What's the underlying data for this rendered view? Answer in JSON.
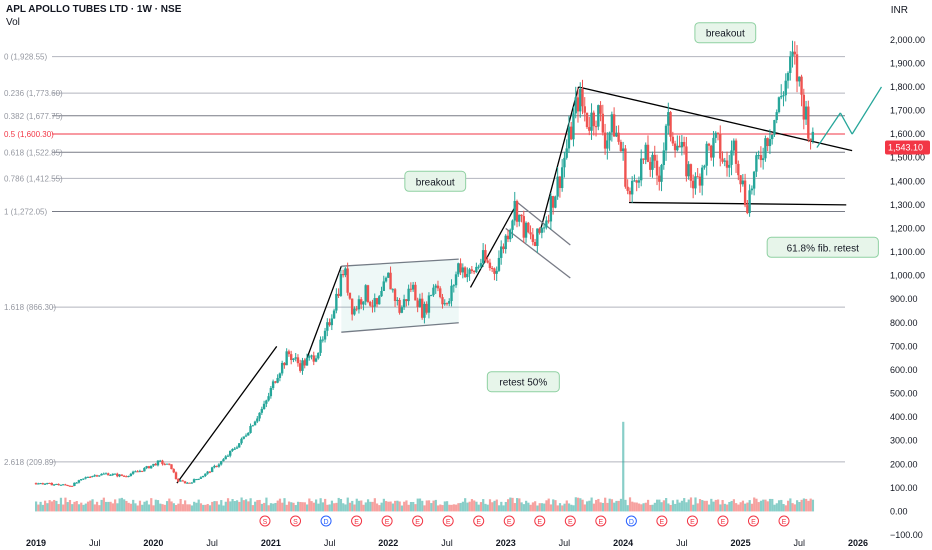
{
  "header": {
    "title": "APL APOLLO TUBES LTD · 1W · NSE",
    "volume_label": "Vol",
    "currency": "INR"
  },
  "chart_data": {
    "type": "candlestick",
    "ylim": [
      -100,
      2050
    ],
    "y_ticks": [
      -100,
      0,
      100,
      200,
      300,
      400,
      500,
      600,
      700,
      800,
      900,
      1000,
      1100,
      1200,
      1300,
      1400,
      1500,
      1600,
      1700,
      1800,
      1900,
      2000
    ],
    "y_tick_labels": [
      "−100.00",
      "0.00",
      "100.00",
      "200.00",
      "300.00",
      "400.00",
      "500.00",
      "600.00",
      "700.00",
      "800.00",
      "900.00",
      "1,000.00",
      "1,100.00",
      "1,200.00",
      "1,300.00",
      "1,400.00",
      "1,500.00",
      "1,600.00",
      "1,700.00",
      "1,800.00",
      "1,900.00",
      "2,000.00"
    ],
    "x_ticks": [
      "2019",
      "Jul",
      "2020",
      "Jul",
      "2021",
      "Jul",
      "2022",
      "Jul",
      "2023",
      "Jul",
      "2024",
      "Jul",
      "2025",
      "Jul",
      "2026"
    ],
    "x_tick_years": [
      2019.0,
      2019.5,
      2020.0,
      2020.5,
      2021.0,
      2021.5,
      2022.0,
      2022.5,
      2023.0,
      2023.5,
      2024.0,
      2024.5,
      2025.0,
      2025.5,
      2026.0
    ],
    "last_price": 1543.1,
    "last_price_label": "1,543.10",
    "fib_levels": [
      {
        "label": "0 (1,928.55)",
        "value": 1928.55,
        "color": "#b2b5be"
      },
      {
        "label": "0.236 (1,773.60)",
        "value": 1773.6,
        "color": "#b2b5be"
      },
      {
        "label": "0.382 (1,677.75)",
        "value": 1677.75,
        "color": "#787b86"
      },
      {
        "label": "0.5 (1,600.30)",
        "value": 1600.3,
        "color": "#f23645"
      },
      {
        "label": "0.618 (1,522.85)",
        "value": 1522.85,
        "color": "#787b86"
      },
      {
        "label": "0.786 (1,412.55)",
        "value": 1412.55,
        "color": "#b2b5be"
      },
      {
        "label": "1 (1,272.05)",
        "value": 1272.05,
        "color": "#787b86"
      },
      {
        "label": "1.618 (866.30)",
        "value": 866.3,
        "color": "#b2b5be"
      },
      {
        "label": "2.618 (209.89)",
        "value": 209.89,
        "color": "#b2b5be"
      }
    ],
    "price_path": [
      [
        2019.0,
        120
      ],
      [
        2019.15,
        115
      ],
      [
        2019.3,
        110
      ],
      [
        2019.45,
        150
      ],
      [
        2019.6,
        160
      ],
      [
        2019.75,
        150
      ],
      [
        2019.9,
        175
      ],
      [
        2020.05,
        210
      ],
      [
        2020.15,
        190
      ],
      [
        2020.2,
        130
      ],
      [
        2020.3,
        120
      ],
      [
        2020.45,
        160
      ],
      [
        2020.6,
        220
      ],
      [
        2020.75,
        300
      ],
      [
        2020.85,
        380
      ],
      [
        2020.95,
        450
      ],
      [
        2021.05,
        580
      ],
      [
        2021.15,
        670
      ],
      [
        2021.25,
        620
      ],
      [
        2021.35,
        650
      ],
      [
        2021.45,
        720
      ],
      [
        2021.55,
        900
      ],
      [
        2021.62,
        1030
      ],
      [
        2021.7,
        850
      ],
      [
        2021.8,
        930
      ],
      [
        2021.9,
        860
      ],
      [
        2022.0,
        990
      ],
      [
        2022.1,
        850
      ],
      [
        2022.2,
        960
      ],
      [
        2022.3,
        840
      ],
      [
        2022.4,
        980
      ],
      [
        2022.5,
        860
      ],
      [
        2022.6,
        1050
      ],
      [
        2022.7,
        1000
      ],
      [
        2022.8,
        1070
      ],
      [
        2022.9,
        1020
      ],
      [
        2023.0,
        1160
      ],
      [
        2023.08,
        1300
      ],
      [
        2023.15,
        1200
      ],
      [
        2023.25,
        1130
      ],
      [
        2023.33,
        1230
      ],
      [
        2023.45,
        1400
      ],
      [
        2023.55,
        1600
      ],
      [
        2023.62,
        1760
      ],
      [
        2023.7,
        1650
      ],
      [
        2023.78,
        1700
      ],
      [
        2023.85,
        1580
      ],
      [
        2023.92,
        1640
      ],
      [
        2024.0,
        1500
      ],
      [
        2024.05,
        1320
      ],
      [
        2024.12,
        1450
      ],
      [
        2024.2,
        1500
      ],
      [
        2024.3,
        1420
      ],
      [
        2024.38,
        1640
      ],
      [
        2024.45,
        1580
      ],
      [
        2024.55,
        1450
      ],
      [
        2024.62,
        1380
      ],
      [
        2024.7,
        1520
      ],
      [
        2024.8,
        1560
      ],
      [
        2024.88,
        1450
      ],
      [
        2024.95,
        1560
      ],
      [
        2025.05,
        1300
      ],
      [
        2025.12,
        1430
      ],
      [
        2025.2,
        1560
      ],
      [
        2025.3,
        1680
      ],
      [
        2025.38,
        1820
      ],
      [
        2025.45,
        1920
      ],
      [
        2025.52,
        1760
      ],
      [
        2025.58,
        1640
      ],
      [
        2025.62,
        1543
      ]
    ],
    "volume": [
      [
        2020.3,
        30
      ],
      [
        2020.6,
        25
      ],
      [
        2021.0,
        35
      ],
      [
        2021.25,
        40
      ],
      [
        2021.75,
        45
      ],
      [
        2022.2,
        40
      ],
      [
        2022.6,
        35
      ],
      [
        2022.9,
        45
      ],
      [
        2023.3,
        35
      ],
      [
        2023.6,
        60
      ],
      [
        2024.0,
        380
      ],
      [
        2024.3,
        50
      ],
      [
        2024.7,
        45
      ],
      [
        2025.2,
        50
      ],
      [
        2025.5,
        40
      ]
    ],
    "annotations": [
      {
        "text": "breakout",
        "x": 2022.4,
        "y": 1400
      },
      {
        "text": "retest 50%",
        "x": 2023.15,
        "y": 550
      },
      {
        "text": "breakout",
        "x": 2024.87,
        "y": 2030
      },
      {
        "text": "61.8% fib. retest",
        "x": 2025.7,
        "y": 1120
      }
    ],
    "event_markers": [
      "S",
      "S",
      "D",
      "E",
      "E",
      "E",
      "E",
      "E",
      "E",
      "E",
      "E",
      "E",
      "D",
      "E",
      "E",
      "E",
      "E",
      "E"
    ]
  }
}
